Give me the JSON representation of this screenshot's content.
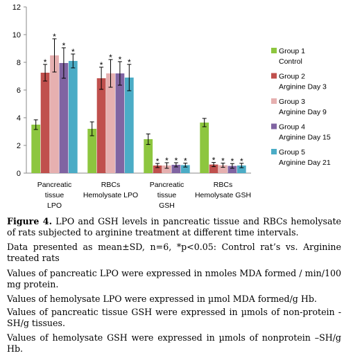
{
  "chart_data": {
    "type": "bar",
    "title": "",
    "xlabel": "",
    "ylabel": "",
    "ylim": [
      0,
      12
    ],
    "yticks": [
      0,
      2,
      4,
      6,
      8,
      10,
      12
    ],
    "grid": false,
    "legend_position": "right",
    "categories": [
      [
        "Pancreatic",
        "tissue",
        "LPO"
      ],
      [
        "RBCs",
        "Hemolysate LPO"
      ],
      [
        "Pancreatic",
        "tissue",
        "GSH"
      ],
      [
        "RBCs",
        "Hemolysate GSH"
      ]
    ],
    "series": [
      {
        "name": [
          "Group 1",
          "Control"
        ],
        "color": "#8dc63f",
        "values": [
          3.5,
          3.2,
          2.45,
          3.65
        ],
        "errors": [
          0.35,
          0.5,
          0.38,
          0.3
        ],
        "significant": [
          false,
          false,
          false,
          false
        ]
      },
      {
        "name": [
          "Group 2",
          "Arginine Day 3"
        ],
        "color": "#c0504d",
        "values": [
          7.25,
          6.85,
          0.55,
          0.62
        ],
        "errors": [
          0.6,
          0.8,
          0.15,
          0.15
        ],
        "significant": [
          true,
          true,
          true,
          true
        ]
      },
      {
        "name": [
          "Group 3",
          "Arginine Day 9"
        ],
        "color": "#e6b0b0",
        "values": [
          8.5,
          7.2,
          0.55,
          0.57
        ],
        "errors": [
          1.2,
          1.0,
          0.2,
          0.15
        ],
        "significant": [
          true,
          true,
          true,
          true
        ]
      },
      {
        "name": [
          "Group 4",
          "Arginine Day 15"
        ],
        "color": "#8064a2",
        "values": [
          7.95,
          7.2,
          0.6,
          0.52
        ],
        "errors": [
          1.1,
          0.85,
          0.15,
          0.17
        ],
        "significant": [
          true,
          true,
          true,
          true
        ]
      },
      {
        "name": [
          "Group 5",
          "Arginine Day 21"
        ],
        "color": "#4bacc6",
        "values": [
          8.1,
          6.9,
          0.58,
          0.55
        ],
        "errors": [
          0.5,
          0.95,
          0.14,
          0.16
        ],
        "significant": [
          true,
          true,
          true,
          true
        ]
      }
    ],
    "significance_marker": "*"
  },
  "caption": {
    "figure_label": "Figure 4.",
    "figure_text": " LPO and GSH levels in pancreatic tissue and RBCs hemolysate of rats subjected to arginine treatment at different time intervals.",
    "line_1": "Data presented as mean±SD, n=6, *p<0.05: Control rat’s vs. Arginine treated rats",
    "line_2": "Values of pancreatic LPO were expressed in nmoles MDA formed / min/100 mg protein.",
    "line_3": "Values of hemolysate LPO were expressed in µmol MDA formed/g Hb.",
    "line_4": "Values of pancreatic tissue GSH were expressed in µmols of non-protein -SH/g tissues.",
    "line_5": "Values of hemolysate GSH were expressed in µmols of nonprotein –SH/g Hb."
  }
}
